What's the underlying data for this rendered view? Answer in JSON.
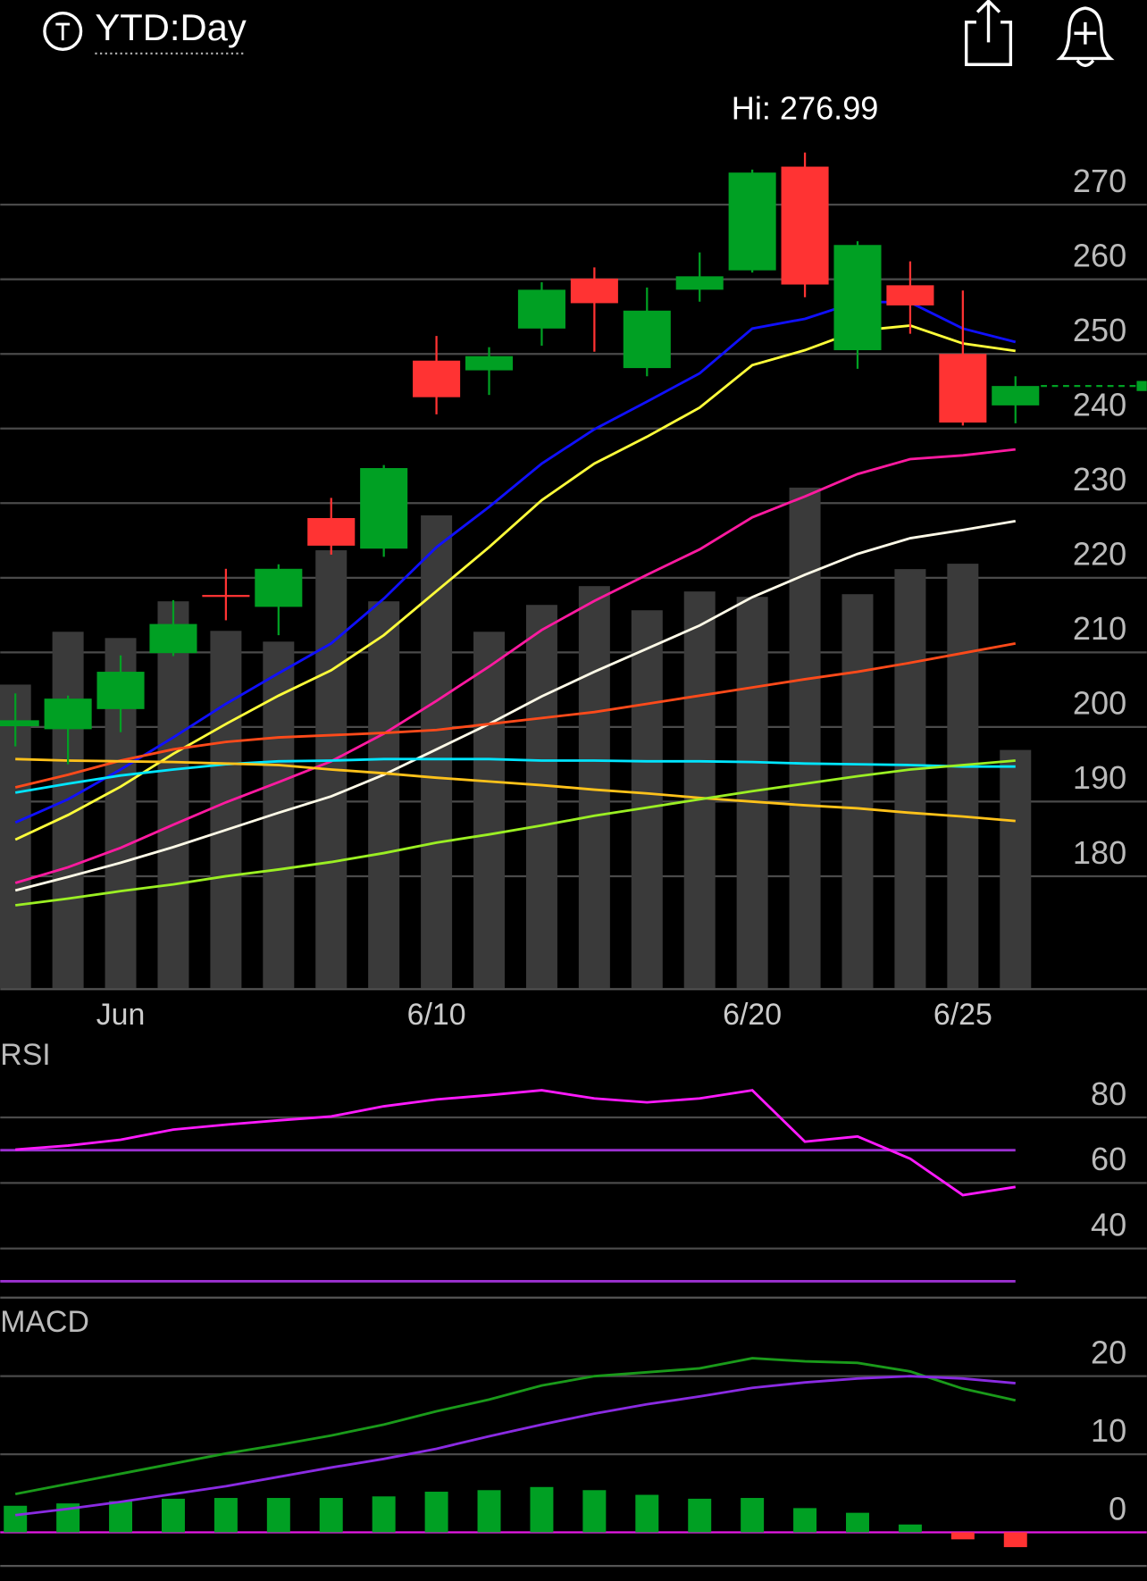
{
  "header": {
    "title": "YTD:Day"
  },
  "chart_data": [
    {
      "type": "candlestick",
      "categories": [
        null,
        null,
        "Jun",
        null,
        null,
        null,
        null,
        null,
        "6/10",
        null,
        null,
        null,
        null,
        null,
        "6/20",
        null,
        null,
        null,
        "6/25",
        null
      ],
      "open": [
        200.1,
        199.7,
        202.4,
        209.9,
        217.7,
        216.1,
        228.0,
        223.9,
        249.1,
        247.8,
        253.4,
        260.1,
        248.1,
        258.6,
        261.2,
        275.1,
        250.5,
        259.2,
        250.0,
        243.1
      ],
      "high": [
        204.5,
        204.2,
        209.6,
        217.0,
        221.2,
        221.8,
        230.7,
        235.1,
        252.4,
        250.9,
        259.6,
        261.6,
        258.9,
        263.6,
        274.7,
        276.99,
        265.1,
        262.4,
        258.5,
        247.0
      ],
      "low": [
        197.4,
        195.0,
        199.3,
        209.5,
        214.3,
        212.3,
        223.1,
        222.8,
        241.9,
        244.5,
        251.1,
        250.3,
        247.0,
        257.0,
        260.9,
        257.6,
        248.0,
        252.7,
        240.4,
        240.7
      ],
      "close": [
        200.9,
        203.8,
        207.4,
        213.8,
        217.5,
        221.2,
        224.3,
        234.7,
        244.2,
        249.7,
        258.6,
        256.8,
        255.8,
        260.4,
        274.3,
        259.3,
        264.6,
        256.5,
        240.8,
        245.7
      ],
      "up_color": "#00a023",
      "down_color": "#ff3333",
      "annotation": "Hi: 276.99",
      "volume": [
        33.9,
        39.8,
        39.1,
        43.2,
        39.9,
        38.7,
        48.9,
        43.2,
        52.8,
        39.8,
        42.8,
        44.9,
        42.2,
        44.3,
        43.7,
        55.9,
        44.0,
        46.8,
        47.4,
        26.6
      ],
      "volume_lim": [
        0,
        100
      ],
      "volume_color": "#3a3a3a",
      "overlays": [
        {
          "color": "#1010ff",
          "values": [
            187.2,
            190.3,
            194.3,
            198.6,
            203.1,
            207.2,
            211.2,
            217.2,
            224.1,
            229.5,
            235.3,
            239.9,
            243.6,
            247.4,
            253.4,
            254.7,
            257.0,
            256.9,
            253.4,
            251.6
          ]
        },
        {
          "color": "#ffff3a",
          "values": [
            184.9,
            188.2,
            192.0,
            196.4,
            200.4,
            204.2,
            207.6,
            212.3,
            218.2,
            224.1,
            230.4,
            235.3,
            238.9,
            242.8,
            248.5,
            250.5,
            253.1,
            253.8,
            251.4,
            250.4
          ]
        },
        {
          "color": "#ff1aa0",
          "values": [
            179.1,
            181.2,
            183.8,
            186.9,
            189.9,
            192.6,
            195.4,
            199.1,
            203.5,
            208.1,
            213.0,
            216.9,
            220.4,
            223.8,
            228.1,
            230.9,
            233.9,
            235.9,
            236.4,
            237.2
          ]
        },
        {
          "color": "#fffbe8",
          "values": [
            178.1,
            179.9,
            181.8,
            183.9,
            186.2,
            188.5,
            190.7,
            193.6,
            197.0,
            200.4,
            204.1,
            207.4,
            210.5,
            213.6,
            217.4,
            220.4,
            223.2,
            225.3,
            226.4,
            227.6
          ]
        },
        {
          "color": "#ff4a1a",
          "values": [
            191.9,
            193.6,
            195.5,
            197.0,
            198.0,
            198.6,
            198.9,
            199.2,
            199.6,
            200.4,
            201.2,
            202.0,
            203.1,
            204.2,
            205.3,
            206.4,
            207.4,
            208.6,
            209.9,
            211.2
          ]
        },
        {
          "color": "#00e5ff",
          "values": [
            191.2,
            192.4,
            193.5,
            194.3,
            195.0,
            195.4,
            195.5,
            195.7,
            195.7,
            195.7,
            195.5,
            195.5,
            195.4,
            195.4,
            195.3,
            195.1,
            195.0,
            194.9,
            194.7,
            194.7
          ]
        },
        {
          "color": "#ffc21a",
          "values": [
            195.7,
            195.5,
            195.4,
            195.3,
            195.1,
            194.9,
            194.3,
            193.8,
            193.2,
            192.7,
            192.2,
            191.6,
            191.1,
            190.5,
            190.0,
            189.5,
            189.1,
            188.5,
            188.0,
            187.4
          ]
        },
        {
          "color": "#9bef23",
          "values": [
            176.1,
            177.0,
            178.0,
            178.9,
            180.0,
            180.9,
            181.9,
            183.1,
            184.5,
            185.6,
            186.8,
            188.1,
            189.2,
            190.3,
            191.4,
            192.4,
            193.4,
            194.3,
            194.9,
            195.5
          ]
        }
      ],
      "ylim": [
        165,
        285
      ],
      "yticks": [
        180,
        190,
        200,
        210,
        220,
        230,
        240,
        250,
        260,
        270
      ],
      "grid": true
    },
    {
      "type": "line",
      "title": "RSI",
      "values": [
        70.2,
        71.4,
        73.2,
        76.3,
        77.8,
        79.1,
        80.3,
        83.4,
        85.5,
        86.8,
        88.3,
        85.8,
        84.6,
        85.8,
        88.3,
        72.6,
        74.2,
        67.4,
        56.3,
        58.8
      ],
      "color": "#ff1aff",
      "ylim": [
        25,
        93
      ],
      "yticks": [
        40,
        60,
        80
      ],
      "reference_lines": [
        70,
        30
      ],
      "reference_color": "#9b30d0",
      "grid": true
    },
    {
      "type": "macd",
      "title": "MACD",
      "series": [
        {
          "color": "#1a9a1a",
          "values": [
            4.9,
            6.2,
            7.5,
            8.8,
            10.1,
            11.2,
            12.4,
            13.8,
            15.5,
            17.0,
            18.8,
            20.0,
            20.5,
            21.0,
            22.3,
            21.9,
            21.7,
            20.6,
            18.4,
            16.9
          ]
        },
        {
          "color": "#8a2be2",
          "values": [
            2.2,
            3.0,
            3.9,
            4.9,
            5.9,
            7.1,
            8.3,
            9.4,
            10.7,
            12.3,
            13.8,
            15.2,
            16.4,
            17.4,
            18.5,
            19.2,
            19.7,
            20.0,
            19.7,
            19.1
          ]
        }
      ],
      "histogram": [
        3.4,
        3.7,
        4.0,
        4.3,
        4.4,
        4.4,
        4.4,
        4.6,
        5.2,
        5.4,
        5.8,
        5.4,
        4.8,
        4.3,
        4.4,
        3.1,
        2.5,
        1.0,
        -0.9,
        -1.9
      ],
      "up_color": "#00a023",
      "down_color": "#ff3333",
      "ylim": [
        -4.3,
        24.5
      ],
      "yticks": [
        0,
        10,
        20
      ],
      "zero_line_color": "#e619e6",
      "grid": true
    }
  ]
}
